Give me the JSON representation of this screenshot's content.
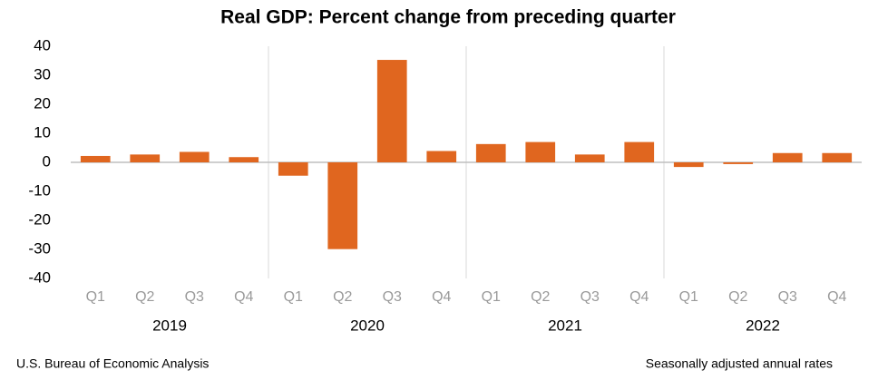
{
  "chart_data": {
    "type": "bar",
    "title": "Real GDP:  Percent change from preceding quarter",
    "categories": [
      "Q1",
      "Q2",
      "Q3",
      "Q4",
      "Q1",
      "Q2",
      "Q3",
      "Q4",
      "Q1",
      "Q2",
      "Q3",
      "Q4",
      "Q1",
      "Q2",
      "Q3",
      "Q4"
    ],
    "groups": [
      "2019",
      "2020",
      "2021",
      "2022"
    ],
    "values": [
      2.2,
      2.7,
      3.6,
      1.8,
      -4.6,
      -29.9,
      35.3,
      3.9,
      6.3,
      7.0,
      2.7,
      7.0,
      -1.6,
      -0.6,
      3.2,
      3.2
    ],
    "color": "#e0661f",
    "ylim": [
      -40,
      40
    ],
    "yticks": [
      -40,
      -30,
      -20,
      -10,
      0,
      10,
      20,
      30,
      40
    ],
    "grid": false,
    "source": "U.S. Bureau of Economic Analysis",
    "note": "Seasonally adjusted annual rates"
  }
}
